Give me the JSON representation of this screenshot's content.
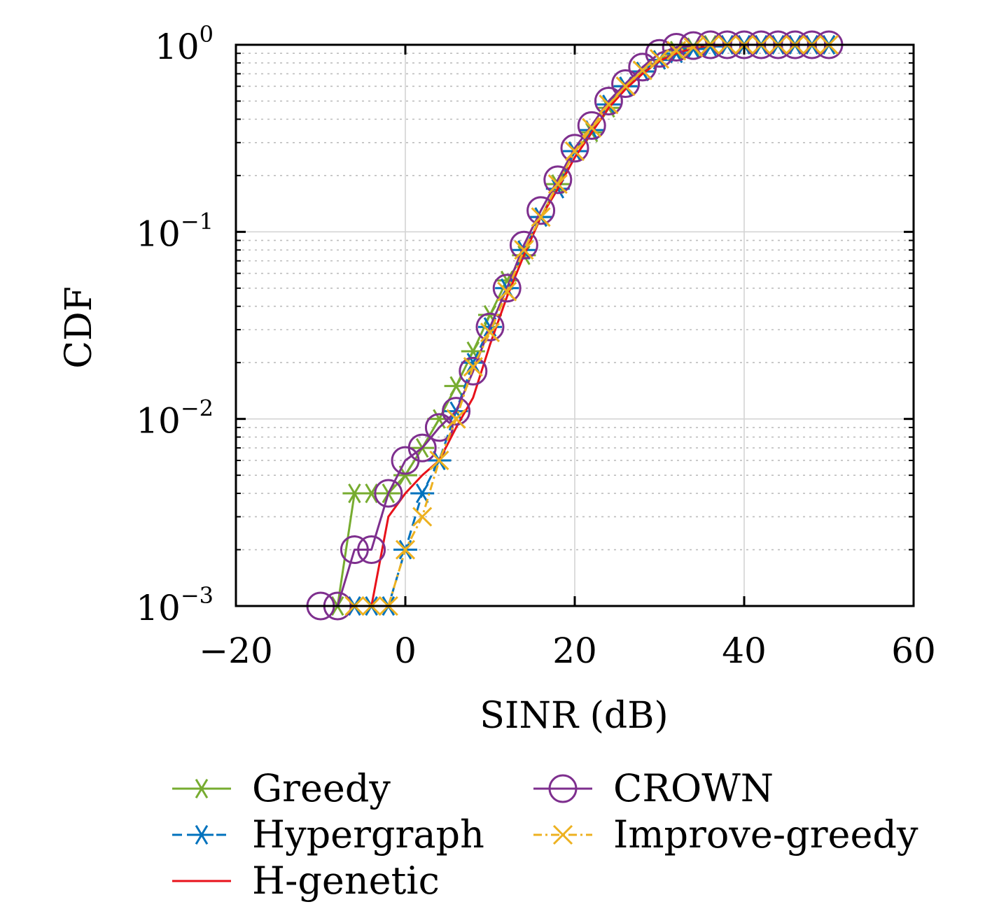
{
  "chart_data": {
    "type": "line",
    "title": "",
    "xlabel": "SINR (dB)",
    "ylabel": "CDF",
    "xlim": [
      -20,
      60
    ],
    "ylim": [
      0.001,
      1
    ],
    "yscale": "log",
    "grid": true,
    "legend_position": "bottom",
    "x_ticks": [
      {
        "value": -20,
        "label": "−20"
      },
      {
        "value": 0,
        "label": "0"
      },
      {
        "value": 20,
        "label": "20"
      },
      {
        "value": 40,
        "label": "40"
      },
      {
        "value": 60,
        "label": "60"
      }
    ],
    "y_ticks": [
      {
        "value": 0.001,
        "base": "10",
        "exp": "−3"
      },
      {
        "value": 0.01,
        "base": "10",
        "exp": "−2"
      },
      {
        "value": 0.1,
        "base": "10",
        "exp": "−1"
      },
      {
        "value": 1,
        "base": "10",
        "exp": "0"
      }
    ],
    "series": [
      {
        "name": "Greedy",
        "color": "#77ac30",
        "dash": "solid",
        "marker": "asterisk",
        "x": [
          -8,
          -6,
          -4,
          -2,
          0,
          2,
          4,
          6,
          8,
          10,
          12,
          14,
          16,
          18,
          20,
          22,
          24,
          26,
          28,
          30,
          32,
          34,
          36,
          38,
          40,
          42,
          44,
          46,
          48,
          50
        ],
        "y": [
          0.001,
          0.004,
          0.004,
          0.004,
          0.005,
          0.007,
          0.01,
          0.015,
          0.023,
          0.036,
          0.055,
          0.075,
          0.12,
          0.18,
          0.27,
          0.34,
          0.46,
          0.6,
          0.72,
          0.83,
          0.93,
          0.97,
          1,
          1,
          1,
          1,
          1,
          1,
          1,
          1
        ]
      },
      {
        "name": "Hypergraph",
        "color": "#0072bd",
        "dash": "dashed",
        "marker": "asterisk",
        "x": [
          -6,
          -4,
          -2,
          0,
          2,
          4,
          6,
          8,
          10,
          12,
          14,
          16,
          18,
          20,
          22,
          24,
          26,
          28,
          30,
          32,
          34,
          36,
          38,
          40,
          42,
          44,
          46,
          48,
          50
        ],
        "y": [
          0.001,
          0.001,
          0.001,
          0.002,
          0.004,
          0.006,
          0.011,
          0.02,
          0.031,
          0.05,
          0.08,
          0.12,
          0.17,
          0.27,
          0.35,
          0.48,
          0.6,
          0.72,
          0.83,
          0.9,
          0.95,
          0.98,
          1,
          1,
          1,
          1,
          1,
          1,
          1
        ]
      },
      {
        "name": "H-genetic",
        "color": "#e8111a",
        "dash": "solid",
        "marker": "none",
        "x": [
          -4,
          -2,
          0,
          2,
          4,
          6,
          8,
          10,
          12,
          14,
          16,
          18,
          20,
          22,
          24,
          26,
          28,
          30,
          32,
          34,
          36,
          38,
          40,
          42,
          44,
          46,
          48,
          50
        ],
        "y": [
          0.001,
          0.003,
          0.004,
          0.005,
          0.006,
          0.009,
          0.013,
          0.025,
          0.045,
          0.075,
          0.12,
          0.17,
          0.25,
          0.34,
          0.46,
          0.58,
          0.7,
          0.82,
          0.9,
          0.96,
          0.99,
          1,
          1,
          1,
          1,
          1,
          1,
          1
        ]
      },
      {
        "name": "CROWN",
        "color": "#7e2f8e",
        "dash": "solid",
        "marker": "circle",
        "x": [
          -10,
          -8,
          -6,
          -4,
          -2,
          0,
          2,
          4,
          6,
          8,
          10,
          12,
          14,
          16,
          18,
          20,
          22,
          24,
          26,
          28,
          30,
          32,
          34,
          36,
          38,
          40,
          42,
          44,
          46,
          48,
          50
        ],
        "y": [
          0.001,
          0.001,
          0.002,
          0.002,
          0.004,
          0.006,
          0.007,
          0.009,
          0.011,
          0.018,
          0.031,
          0.05,
          0.085,
          0.13,
          0.19,
          0.28,
          0.37,
          0.5,
          0.62,
          0.76,
          0.9,
          0.97,
          0.99,
          1,
          1,
          1,
          1,
          1,
          1,
          1,
          1
        ]
      },
      {
        "name": "Improve-greedy",
        "color": "#edb120",
        "dash": "dashdot",
        "marker": "x",
        "x": [
          -6,
          -4,
          -2,
          0,
          2,
          4,
          6,
          8,
          10,
          12,
          14,
          16,
          18,
          20,
          22,
          24,
          26,
          28,
          30,
          32,
          34,
          36,
          38,
          40,
          42,
          44,
          46,
          48,
          50
        ],
        "y": [
          0.001,
          0.001,
          0.001,
          0.002,
          0.003,
          0.006,
          0.01,
          0.019,
          0.029,
          0.048,
          0.08,
          0.12,
          0.18,
          0.27,
          0.36,
          0.48,
          0.6,
          0.73,
          0.84,
          0.93,
          0.97,
          1,
          1,
          1,
          1,
          1,
          1,
          1,
          1
        ]
      }
    ],
    "legend_columns": [
      [
        "Greedy",
        "Hypergraph",
        "H-genetic"
      ],
      [
        "CROWN",
        "Improve-greedy"
      ]
    ]
  }
}
